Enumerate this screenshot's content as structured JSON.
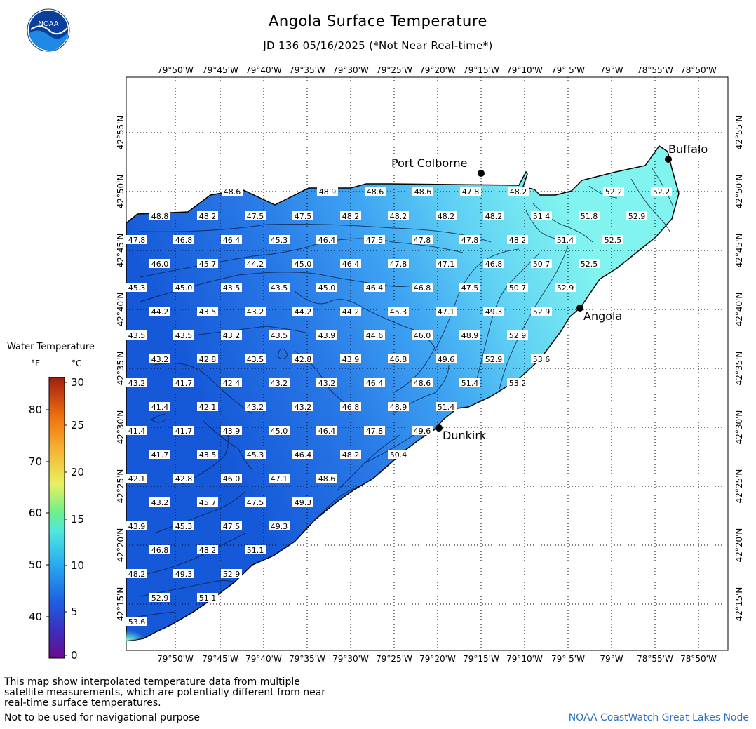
{
  "title": "Angola Surface Temperature",
  "subtitle": "JD 136 05/16/2025 (*Not Near Real-time*)",
  "logo": {
    "text": "NOAA",
    "icon": "noaa-logo-icon"
  },
  "legend": {
    "title": "Water Temperature",
    "f_unit": "°F",
    "c_unit": "°C",
    "f_ticks": [
      "80",
      "70",
      "60",
      "50",
      "40"
    ],
    "c_ticks": [
      "30",
      "25",
      "20",
      "15",
      "10",
      "5",
      "0"
    ]
  },
  "axes": {
    "lon_labels": [
      "79°50'W",
      "79°45'W",
      "79°40'W",
      "79°35'W",
      "79°30'W",
      "79°25'W",
      "79°20'W",
      "79°15'W",
      "79°10'W",
      "79° 5'W",
      "79°W",
      "78°55'W",
      "78°50'W"
    ],
    "lat_labels": [
      "42°55'N",
      "42°50'N",
      "42°45'N",
      "42°40'N",
      "42°35'N",
      "42°30'N",
      "42°25'N",
      "42°20'N",
      "42°15'N"
    ]
  },
  "cities": [
    {
      "name": "Port Colborne"
    },
    {
      "name": "Buffalo"
    },
    {
      "name": "Angola"
    },
    {
      "name": "Dunkirk"
    }
  ],
  "temperature_labels": [
    [
      "48.6",
      "48.9",
      "48.6",
      "48.6",
      "47.8",
      "48.2",
      "52.2",
      "52.2"
    ],
    [
      "48.8",
      "48.2",
      "47.5",
      "47.5",
      "48.2",
      "48.2",
      "48.2",
      "48.2",
      "51.4",
      "51.8",
      "52.9"
    ],
    [
      "47.8",
      "46.8",
      "46.4",
      "45.3",
      "46.4",
      "47.5",
      "47.8",
      "47.8",
      "48.2",
      "51.4",
      "52.5"
    ],
    [
      "46.0",
      "45.7",
      "44.2",
      "45.0",
      "46.4",
      "47.8",
      "47.1",
      "46.8",
      "50.7",
      "52.5"
    ],
    [
      "45.3",
      "45.0",
      "43.5",
      "43.5",
      "45.0",
      "46.4",
      "46.8",
      "47.5",
      "50.7",
      "52.9"
    ],
    [
      "44.2",
      "43.5",
      "43.2",
      "44.2",
      "44.2",
      "45.3",
      "47.1",
      "49.3",
      "52.9"
    ],
    [
      "43.5",
      "43.5",
      "43.2",
      "43.5",
      "43.9",
      "44.6",
      "46.0",
      "48.9",
      "52.9"
    ],
    [
      "43.2",
      "42.8",
      "43.5",
      "42.8",
      "43.9",
      "46.8",
      "49.6",
      "52.9",
      "53.6"
    ],
    [
      "43.2",
      "41.7",
      "42.4",
      "43.2",
      "43.2",
      "46.4",
      "48.6",
      "51.4",
      "53.2"
    ],
    [
      "41.4",
      "42.1",
      "43.2",
      "43.2",
      "46.8",
      "48.9",
      "51.4"
    ],
    [
      "41.4",
      "41.7",
      "43.9",
      "45.0",
      "46.4",
      "47.8",
      "49.6"
    ],
    [
      "41.7",
      "43.5",
      "45.3",
      "46.4",
      "48.2",
      "50.4"
    ],
    [
      "42.1",
      "42.8",
      "46.0",
      "47.1",
      "48.6"
    ],
    [
      "43.2",
      "45.7",
      "47.5",
      "49.3"
    ],
    [
      "43.9",
      "45.3",
      "47.5",
      "49.3"
    ],
    [
      "46.8",
      "48.2",
      "51.1"
    ],
    [
      "48.2",
      "49.3",
      "52.9"
    ],
    [
      "52.9",
      "51.1"
    ],
    [
      "53.6"
    ]
  ],
  "footer": {
    "note": "This map show interpolated temperature data from multiple satellite measurements, which are potentially different from near real-time surface temperatures.",
    "nav": "Not to be used for navigational purpose",
    "credit": "NOAA CoastWatch Great Lakes Node"
  },
  "colors": {
    "lake_deep": "#1f6fe0",
    "lake_mid": "#3aa0f0",
    "lake_warm": "#7ef0ef",
    "credit": "#2f6fc4"
  }
}
